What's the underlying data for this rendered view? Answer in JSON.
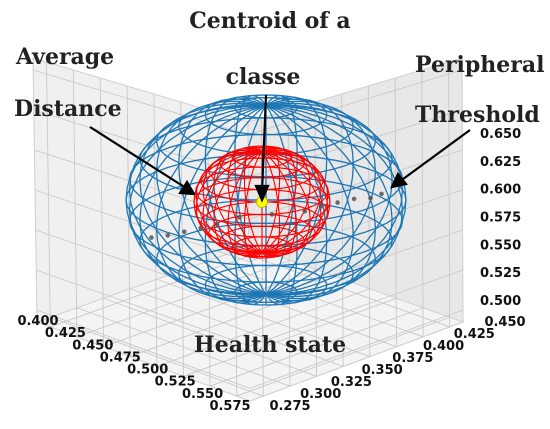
{
  "chart_data": {
    "type": "scatter",
    "projection": "3d",
    "x_ticks": [
      "0.400",
      "0.425",
      "0.450",
      "0.475",
      "0.500",
      "0.525",
      "0.550",
      "0.575"
    ],
    "y_ticks": [
      "0.275",
      "0.300",
      "0.325",
      "0.350",
      "0.375",
      "0.400",
      "0.425",
      "0.450"
    ],
    "z_ticks": [
      "0.500",
      "0.525",
      "0.550",
      "0.575",
      "0.600",
      "0.625",
      "0.650"
    ],
    "xlim": [
      0.4,
      0.575
    ],
    "ylim": [
      0.275,
      0.45
    ],
    "zlim": [
      0.5,
      0.65
    ],
    "grid": true,
    "centroid": {
      "x": 0.49,
      "y": 0.37,
      "z": 0.58,
      "color": "#ffff00"
    },
    "inner_sphere": {
      "color": "#ff0000"
    },
    "outer_sphere": {
      "color": "#1f77b4"
    },
    "points": [
      {
        "x": 0.43,
        "y": 0.33,
        "z": 0.555
      },
      {
        "x": 0.44,
        "y": 0.335,
        "z": 0.558
      },
      {
        "x": 0.45,
        "y": 0.34,
        "z": 0.562
      },
      {
        "x": 0.46,
        "y": 0.345,
        "z": 0.566
      },
      {
        "x": 0.47,
        "y": 0.35,
        "z": 0.57
      },
      {
        "x": 0.48,
        "y": 0.36,
        "z": 0.575
      },
      {
        "x": 0.5,
        "y": 0.37,
        "z": 0.58
      },
      {
        "x": 0.52,
        "y": 0.38,
        "z": 0.585
      },
      {
        "x": 0.53,
        "y": 0.385,
        "z": 0.59
      },
      {
        "x": 0.54,
        "y": 0.39,
        "z": 0.594
      },
      {
        "x": 0.55,
        "y": 0.395,
        "z": 0.598
      },
      {
        "x": 0.56,
        "y": 0.4,
        "z": 0.6
      },
      {
        "x": 0.565,
        "y": 0.405,
        "z": 0.603
      }
    ],
    "annotations": {
      "centroid_line1": "Centroid of a",
      "centroid_line2": "classe",
      "avg_line1": "Average",
      "avg_line2": "Distance",
      "peri_line1": "Peripheral",
      "peri_line2": "Threshold",
      "health": "Health state"
    }
  }
}
